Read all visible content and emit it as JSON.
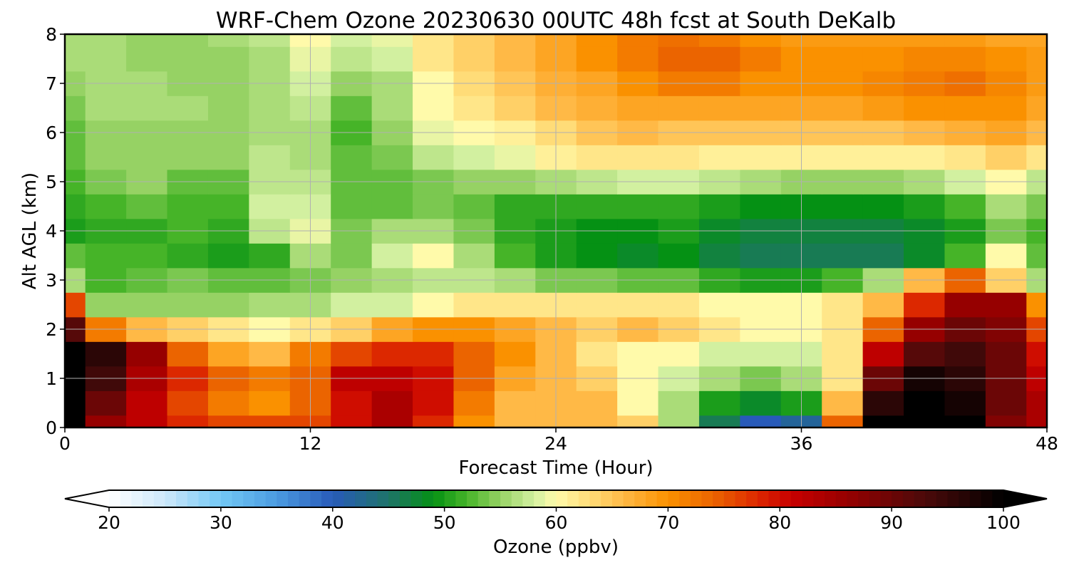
{
  "chart_data": {
    "type": "heatmap",
    "title": "WRF-Chem Ozone  20230630 00UTC 48h fcst at South DeKalb",
    "xlabel": "Forecast Time (Hour)",
    "ylabel": "Alt AGL (km)",
    "xlim": [
      0,
      48
    ],
    "ylim": [
      0,
      8
    ],
    "xticks": [
      0,
      12,
      24,
      36,
      48
    ],
    "yticks": [
      0,
      1,
      2,
      3,
      4,
      5,
      6,
      7,
      8
    ],
    "grid": true,
    "colorbar": {
      "label": "Ozone  (ppbv)",
      "min": 20,
      "max": 100,
      "ticks": [
        20,
        30,
        40,
        50,
        60,
        70,
        80,
        90,
        100
      ],
      "extend": "both"
    },
    "z_units": "ppbv",
    "x": [
      0,
      2,
      4,
      6,
      8,
      10,
      12,
      14,
      16,
      18,
      20,
      22,
      24,
      26,
      28,
      30,
      32,
      34,
      36,
      38,
      40,
      42,
      44,
      46,
      48
    ],
    "y": [
      0.0,
      0.5,
      1.0,
      1.5,
      2.0,
      2.5,
      3.0,
      3.5,
      4.0,
      4.5,
      5.0,
      5.5,
      6.0,
      6.5,
      7.0,
      7.5,
      8.0
    ],
    "z": [
      [
        100,
        86,
        82,
        78,
        76,
        76,
        76,
        80,
        84,
        78,
        70,
        66,
        66,
        66,
        64,
        56,
        46,
        40,
        42,
        74,
        100,
        100,
        100,
        88,
        84
      ],
      [
        100,
        90,
        82,
        76,
        72,
        70,
        74,
        80,
        84,
        80,
        72,
        66,
        66,
        66,
        60,
        56,
        50,
        48,
        50,
        66,
        96,
        100,
        98,
        90,
        84
      ],
      [
        100,
        94,
        84,
        78,
        74,
        72,
        74,
        82,
        82,
        80,
        74,
        68,
        66,
        64,
        60,
        58,
        56,
        54,
        56,
        62,
        90,
        98,
        96,
        90,
        82
      ],
      [
        100,
        96,
        86,
        74,
        68,
        66,
        72,
        76,
        78,
        78,
        74,
        70,
        66,
        62,
        60,
        60,
        58,
        58,
        58,
        62,
        82,
        92,
        94,
        90,
        80
      ],
      [
        92,
        72,
        66,
        64,
        62,
        60,
        62,
        64,
        68,
        70,
        70,
        68,
        66,
        64,
        66,
        64,
        62,
        60,
        60,
        62,
        74,
        86,
        90,
        88,
        76
      ],
      [
        76,
        55,
        55,
        55,
        55,
        56,
        56,
        58,
        58,
        60,
        62,
        62,
        62,
        62,
        62,
        62,
        60,
        60,
        60,
        62,
        66,
        78,
        86,
        86,
        70
      ],
      [
        56,
        52,
        53,
        54,
        53,
        53,
        54,
        55,
        56,
        57,
        57,
        56,
        54,
        54,
        53,
        53,
        51,
        50,
        50,
        52,
        56,
        66,
        74,
        64,
        56
      ],
      [
        53,
        52,
        52,
        51,
        50,
        51,
        56,
        54,
        58,
        60,
        56,
        52,
        50,
        49,
        48,
        49,
        47,
        46,
        46,
        46,
        46,
        48,
        52,
        60,
        53
      ],
      [
        50,
        51,
        51,
        52,
        51,
        57,
        59,
        54,
        56,
        56,
        54,
        51,
        50,
        49,
        49,
        50,
        48,
        47,
        47,
        47,
        47,
        48,
        50,
        54,
        52
      ],
      [
        51,
        52,
        53,
        52,
        52,
        58,
        58,
        53,
        53,
        54,
        53,
        51,
        51,
        51,
        51,
        51,
        50,
        49,
        49,
        49,
        49,
        50,
        52,
        56,
        54
      ],
      [
        52,
        54,
        55,
        53,
        53,
        57,
        57,
        53,
        53,
        54,
        55,
        55,
        56,
        57,
        58,
        58,
        57,
        56,
        55,
        55,
        55,
        56,
        58,
        60,
        57
      ],
      [
        53,
        55,
        55,
        55,
        55,
        57,
        56,
        53,
        54,
        57,
        58,
        59,
        61,
        62,
        62,
        62,
        61,
        61,
        61,
        61,
        61,
        61,
        62,
        64,
        62
      ],
      [
        53,
        55,
        55,
        55,
        55,
        56,
        56,
        52,
        55,
        59,
        60,
        61,
        63,
        65,
        66,
        65,
        65,
        65,
        65,
        65,
        65,
        66,
        67,
        68,
        66
      ],
      [
        54,
        56,
        56,
        56,
        55,
        56,
        57,
        53,
        56,
        60,
        62,
        64,
        66,
        67,
        68,
        68,
        68,
        68,
        68,
        68,
        69,
        70,
        70,
        70,
        68
      ],
      [
        55,
        56,
        56,
        55,
        55,
        56,
        58,
        55,
        56,
        60,
        63,
        65,
        67,
        68,
        70,
        72,
        72,
        70,
        70,
        70,
        71,
        72,
        73,
        71,
        69
      ],
      [
        56,
        56,
        55,
        55,
        55,
        56,
        59,
        57,
        58,
        62,
        64,
        66,
        68,
        70,
        72,
        74,
        74,
        72,
        70,
        70,
        70,
        71,
        71,
        70,
        69
      ],
      [
        56,
        56,
        55,
        55,
        56,
        57,
        60,
        58,
        59,
        62,
        64,
        66,
        68,
        70,
        72,
        73,
        72,
        70,
        69,
        69,
        69,
        69,
        69,
        68,
        68
      ]
    ]
  }
}
